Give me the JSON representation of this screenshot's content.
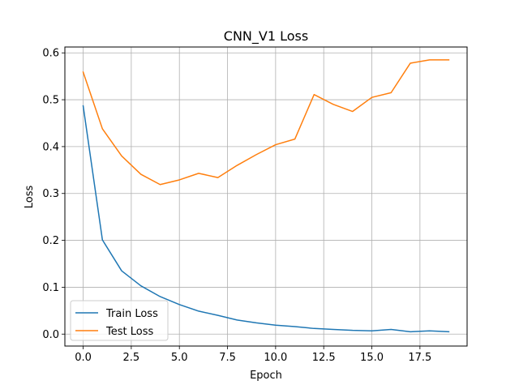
{
  "chart_data": {
    "type": "line",
    "title": "CNN_V1 Loss",
    "xlabel": "Epoch",
    "ylabel": "Loss",
    "x": [
      0,
      1,
      2,
      3,
      4,
      5,
      6,
      7,
      8,
      9,
      10,
      11,
      12,
      13,
      14,
      15,
      16,
      17,
      18,
      19
    ],
    "xlim": [
      -0.95,
      19.95
    ],
    "ylim": [
      -0.0255,
      0.6125
    ],
    "xticks": [
      0,
      2.5,
      5,
      7.5,
      10,
      12.5,
      15,
      17.5
    ],
    "xtick_labels": [
      "0.0",
      "2.5",
      "5.0",
      "7.5",
      "10.0",
      "12.5",
      "15.0",
      "17.5"
    ],
    "yticks": [
      0,
      0.1,
      0.2,
      0.3,
      0.4,
      0.5,
      0.6
    ],
    "ytick_labels": [
      "0.0",
      "0.1",
      "0.2",
      "0.3",
      "0.4",
      "0.5",
      "0.6"
    ],
    "grid": true,
    "legend_position": "lower-left",
    "series": [
      {
        "name": "Train Loss",
        "color": "#1f77b4",
        "values": [
          0.487,
          0.201,
          0.135,
          0.103,
          0.08,
          0.063,
          0.049,
          0.04,
          0.03,
          0.024,
          0.019,
          0.016,
          0.012,
          0.01,
          0.008,
          0.007,
          0.01,
          0.005,
          0.007,
          0.005
        ]
      },
      {
        "name": "Test Loss",
        "color": "#ff7f0e",
        "values": [
          0.559,
          0.438,
          0.38,
          0.341,
          0.319,
          0.329,
          0.343,
          0.334,
          0.36,
          0.383,
          0.404,
          0.416,
          0.511,
          0.49,
          0.475,
          0.505,
          0.515,
          0.578,
          0.585,
          0.585
        ]
      }
    ]
  }
}
